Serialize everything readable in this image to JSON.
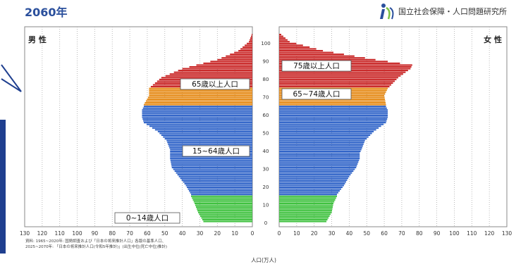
{
  "page": {
    "title": "2060年",
    "org_name": "国立社会保障・人口問題研究所",
    "male_label": "男 性",
    "female_label": "女 性",
    "source_line1": "資料: 1965~2020年: 国勢調査および「日本の将来推計人口」各版の基準人口、",
    "source_line2": "2025~2070年: 「日本の将来推計人口(令和5年推計)」(出生中位(死亡中位)推計)",
    "x_axis_title": "人口(万人)"
  },
  "chart_data": {
    "type": "bar",
    "orientation": "horizontal-pyramid",
    "title": "2060年",
    "xlabel": "人口(万人)",
    "ylabel": "",
    "xlim": [
      0,
      130
    ],
    "ylim": [
      0,
      105
    ],
    "x_ticks": [
      0,
      10,
      20,
      30,
      40,
      50,
      60,
      70,
      80,
      90,
      100,
      110,
      120,
      130
    ],
    "age_ticks": [
      0,
      10,
      20,
      30,
      40,
      50,
      60,
      70,
      80,
      90,
      100
    ],
    "grid": true,
    "age_groups": [
      {
        "name": "0~14歳人口",
        "from": 0,
        "to": 14,
        "color": "#3ec13e"
      },
      {
        "name": "15~64歳人口",
        "from": 15,
        "to": 64,
        "color": "#2f63c8"
      },
      {
        "name": "65~74歳人口",
        "from": 65,
        "to": 74,
        "color": "#e58a16"
      },
      {
        "name": "75歳以上人口",
        "from": 75,
        "to": 105,
        "color": "#c92626"
      }
    ],
    "annotations": {
      "left": [
        "65歳以上人口",
        "15~64歳人口",
        "0~14歳人口"
      ],
      "right": [
        "75歳以上人口",
        "65~74歳人口"
      ]
    },
    "series": [
      {
        "name": "男 性",
        "ages": [
          0,
          5,
          10,
          14,
          15,
          20,
          25,
          30,
          35,
          38,
          40,
          45,
          50,
          55,
          58,
          60,
          62,
          64,
          65,
          70,
          74,
          75,
          80,
          85,
          90,
          95,
          100,
          105
        ],
        "values": [
          28,
          31,
          33,
          35,
          35,
          38,
          42,
          46,
          47,
          47,
          47,
          49,
          54,
          62,
          63,
          63,
          63,
          62,
          62,
          59,
          59,
          58,
          52,
          40,
          20,
          8,
          2,
          0
        ]
      },
      {
        "name": "女 性",
        "ages": [
          0,
          5,
          10,
          14,
          15,
          20,
          25,
          30,
          35,
          38,
          40,
          45,
          50,
          55,
          58,
          60,
          62,
          64,
          65,
          70,
          74,
          75,
          80,
          85,
          87,
          90,
          95,
          100,
          105
        ],
        "values": [
          27,
          30,
          31,
          33,
          33,
          37,
          40,
          44,
          46,
          46,
          47,
          49,
          54,
          61,
          62,
          62,
          62,
          61,
          61,
          60,
          62,
          63,
          68,
          75,
          76,
          55,
          25,
          6,
          0
        ]
      }
    ]
  }
}
